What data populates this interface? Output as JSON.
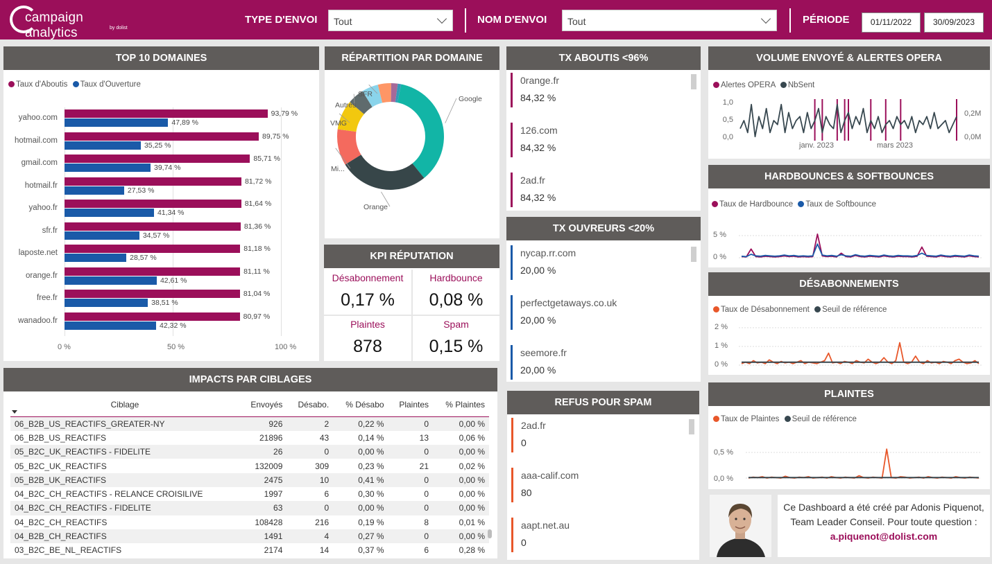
{
  "header": {
    "logo_text": "campaign analytics",
    "logo_by": "by dolist",
    "type_label": "TYPE D'ENVOI",
    "type_value": "Tout",
    "name_label": "NOM D'ENVOI",
    "name_value": "Tout",
    "period_label": "PÉRIODE",
    "date_start": "01/11/2022",
    "date_end": "30/09/2023"
  },
  "top10": {
    "title": "TOP 10 DOMAINES",
    "legend": [
      "Taux d'Aboutis",
      "Taux d'Ouverture"
    ],
    "x_ticks": [
      "0 %",
      "50 %",
      "100 %"
    ]
  },
  "repartition": {
    "title": "RÉPARTITION PAR DOMAINE"
  },
  "kpi": {
    "title": "KPI RÉPUTATION",
    "items": [
      {
        "label": "Désabonnement",
        "value": "0,17 %"
      },
      {
        "label": "Hardbounce",
        "value": "0,08 %"
      },
      {
        "label": "Plaintes",
        "value": "878"
      },
      {
        "label": "Spam",
        "value": "0,15 %"
      }
    ]
  },
  "tx_aboutis": {
    "title": "TX ABOUTIS <96%",
    "items": [
      {
        "name": "0range.fr",
        "value": "84,32 %"
      },
      {
        "name": "126.com",
        "value": "84,32 %"
      },
      {
        "name": "2ad.fr",
        "value": "84,32 %"
      }
    ]
  },
  "tx_ouvreurs": {
    "title": "TX OUVREURS <20%",
    "items": [
      {
        "name": "nycap.rr.com",
        "value": "20,00 %"
      },
      {
        "name": "perfectgetaways.co.uk",
        "value": "20,00 %"
      },
      {
        "name": "seemore.fr",
        "value": "20,00 %"
      }
    ]
  },
  "refus_spam": {
    "title": "REFUS POUR SPAM",
    "items": [
      {
        "name": "2ad.fr",
        "value": "0"
      },
      {
        "name": "aaa-calif.com",
        "value": "80"
      },
      {
        "name": "aapt.net.au",
        "value": "0"
      }
    ]
  },
  "volume": {
    "title": "VOLUME ENVOYÉ & ALERTES OPERA",
    "legend": [
      "Alertes OPERA",
      "NbSent"
    ],
    "y_left": [
      "1,0",
      "0,5",
      "0,0"
    ],
    "y_right": [
      "0,2M",
      "0,0M"
    ],
    "x_ticks": [
      "janv. 2023",
      "mars 2023"
    ]
  },
  "bounces": {
    "title": "HARDBOUNCES & SOFTBOUNCES",
    "legend": [
      "Taux de Hardbounce",
      "Taux de Softbounce"
    ],
    "y_ticks": [
      "5 %",
      "0 %"
    ]
  },
  "desabo": {
    "title": "DÉSABONNEMENTS",
    "legend": [
      "Taux de Désabonnement",
      "Seuil de référence"
    ],
    "y_ticks": [
      "2 %",
      "1 %",
      "0 %"
    ]
  },
  "plaintes": {
    "title": "PLAINTES",
    "legend": [
      "Taux de Plaintes",
      "Seuil de référence"
    ],
    "y_ticks": [
      "0,5 %",
      "0,0 %"
    ]
  },
  "impacts": {
    "title": "IMPACTS PAR CIBLAGES",
    "columns": [
      "Ciblage",
      "Envoyés",
      "Désabo.",
      "% Désabo",
      "Plaintes",
      "% Plaintes"
    ],
    "rows": [
      [
        "06_B2B_US_REACTIFS_GREATER-NY",
        "926",
        "2",
        "0,22 %",
        "0",
        "0,00 %"
      ],
      [
        "06_B2B_US_REACTIFS",
        "21896",
        "43",
        "0,14 %",
        "13",
        "0,06 %"
      ],
      [
        "05_B2C_UK_REACTIFS - FIDELITE",
        "26",
        "0",
        "0,00 %",
        "0",
        "0,00 %"
      ],
      [
        "05_B2C_UK_REACTIFS",
        "132009",
        "309",
        "0,23 %",
        "21",
        "0,02 %"
      ],
      [
        "05_B2B_UK_REACTIFS",
        "2475",
        "10",
        "0,41 %",
        "0",
        "0,00 %"
      ],
      [
        "04_B2C_CH_REACTIFS - RELANCE CROISILIVE",
        "1997",
        "6",
        "0,30 %",
        "0",
        "0,00 %"
      ],
      [
        "04_B2C_CH_REACTIFS - FIDELITE",
        "63",
        "0",
        "0,00 %",
        "0",
        "0,00 %"
      ],
      [
        "04_B2C_CH_REACTIFS",
        "108428",
        "216",
        "0,19 %",
        "8",
        "0,01 %"
      ],
      [
        "04_B2B_CH_REACTIFS",
        "1491",
        "4",
        "0,27 %",
        "0",
        "0,00 %"
      ],
      [
        "03_B2C_BE_NL_REACTIFS",
        "2174",
        "14",
        "0,37 %",
        "6",
        "0,28 %"
      ]
    ]
  },
  "footer": {
    "text": "Ce Dashboard a été créé par Adonis Piquenot, Team Leader Conseil. Pour toute question :",
    "email": "a.piquenot@dolist.com"
  },
  "colors": {
    "brand": "#9b0f5a",
    "blue": "#1a5aa8",
    "orange": "#e8572a",
    "dark": "#37474f",
    "header_gray": "#5f5c5a"
  },
  "chart_data": [
    {
      "type": "bar",
      "title": "TOP 10 DOMAINES",
      "categories": [
        "yahoo.com",
        "hotmail.com",
        "gmail.com",
        "hotmail.fr",
        "yahoo.fr",
        "sfr.fr",
        "laposte.net",
        "orange.fr",
        "free.fr",
        "wanadoo.fr"
      ],
      "series": [
        {
          "name": "Taux d'Aboutis",
          "values": [
            93.79,
            89.75,
            85.71,
            81.72,
            81.64,
            81.36,
            81.18,
            81.11,
            81.04,
            80.97
          ],
          "labels": [
            "93,79 %",
            "89,75 %",
            "85,71 %",
            "81,72 %",
            "81,64 %",
            "81,36 %",
            "81,18 %",
            "81,11 %",
            "81,04 %",
            "80,97 %"
          ]
        },
        {
          "name": "Taux d'Ouverture",
          "values": [
            47.89,
            35.25,
            39.74,
            27.53,
            41.34,
            34.57,
            28.57,
            42.61,
            38.51,
            42.32
          ],
          "labels": [
            "47,89 %",
            "35,25 %",
            "39,74 %",
            "27,53 %",
            "41,34 %",
            "34,57 %",
            "28,57 %",
            "42,61 %",
            "38,51 %",
            "42,32 %"
          ]
        }
      ],
      "xlim": [
        0,
        100
      ]
    },
    {
      "type": "pie",
      "title": "RÉPARTITION PAR DOMAINE",
      "slices": [
        {
          "label": "Google",
          "value": 36,
          "color": "#12b5a6"
        },
        {
          "label": "Orange",
          "value": 27,
          "color": "#374649"
        },
        {
          "label": "Mi...",
          "value": 11,
          "color": "#f46a5e"
        },
        {
          "label": "VMG",
          "value": 9,
          "color": "#f2c80f"
        },
        {
          "label": "Autres",
          "value": 5,
          "color": "#5f6b6d"
        },
        {
          "label": "SFR",
          "value": 5,
          "color": "#8ad4eb"
        },
        {
          "label": "",
          "value": 4,
          "color": "#fe9666"
        },
        {
          "label": "",
          "value": 2,
          "color": "#a66999"
        },
        {
          "label": "",
          "value": 1,
          "color": "#3599b8"
        }
      ]
    },
    {
      "type": "line",
      "title": "HARDBOUNCES & SOFTBOUNCES",
      "series": [
        {
          "name": "Taux de Hardbounce",
          "values": [
            0.3,
            0.2,
            2.3,
            0.3,
            0.2,
            0.4,
            0.3,
            0.2,
            0.3,
            0.5,
            0.3,
            0.4,
            0.2,
            0.3,
            0.2,
            0.3,
            6.2,
            0.5,
            0.3,
            0.4,
            0.2,
            1.2,
            0.3,
            0.2,
            0.6,
            0.3,
            0.2,
            0.4,
            0.3,
            0.2,
            0.5,
            0.3,
            0.2,
            0.4,
            0.3,
            0.3,
            0.2,
            0.4,
            2.8,
            0.4,
            0.3,
            0.2,
            0.5,
            0.3,
            0.2,
            0.4,
            0.3,
            0.2,
            0.5,
            0.3,
            0.2
          ]
        },
        {
          "name": "Taux de Softbounce",
          "values": [
            0.4,
            0.3,
            0.9,
            0.5,
            0.4,
            0.6,
            0.5,
            0.4,
            0.5,
            0.7,
            0.5,
            0.6,
            0.4,
            0.5,
            0.4,
            0.5,
            3.6,
            0.7,
            0.5,
            0.6,
            0.4,
            0.8,
            0.5,
            0.4,
            0.8,
            0.5,
            0.4,
            0.6,
            0.5,
            0.4,
            0.7,
            0.5,
            0.4,
            0.6,
            0.5,
            0.5,
            0.4,
            0.6,
            1.2,
            0.6,
            0.5,
            0.4,
            0.7,
            0.5,
            0.4,
            0.6,
            0.5,
            0.4,
            0.7,
            0.5,
            0.4
          ]
        }
      ],
      "ylim": [
        0,
        8
      ]
    },
    {
      "type": "line",
      "title": "DÉSABONNEMENTS",
      "series": [
        {
          "name": "Taux de Désabonnement",
          "values": [
            0.1,
            0.2,
            0.1,
            0.3,
            0.15,
            0.2,
            0.1,
            0.35,
            0.2,
            0.1,
            0.25,
            0.15,
            0.2,
            0.1,
            0.2,
            0.3,
            0.1,
            0.2,
            0.15,
            0.1,
            0.2,
            0.3,
            0.8,
            0.15,
            0.2,
            0.1,
            0.25,
            0.2,
            0.1,
            0.3,
            0.2,
            0.15,
            0.4,
            0.2,
            0.1,
            0.2,
            0.5,
            0.2,
            0.1,
            0.3,
            1.5,
            0.2,
            0.1,
            0.2,
            0.6,
            0.2,
            0.1,
            0.3,
            0.15,
            0.2,
            0.1,
            0.25,
            0.2,
            0.1,
            0.3,
            0.4,
            0.2,
            0.1,
            0.15,
            0.3,
            0.1
          ]
        },
        {
          "name": "Seuil de référence",
          "values": [
            0.2,
            0.2
          ]
        }
      ],
      "ylim": [
        0,
        2.5
      ]
    },
    {
      "type": "line",
      "title": "PLAINTES",
      "series": [
        {
          "name": "Taux de Plaintes",
          "values": [
            0.0,
            0.02,
            0.01,
            0.03,
            0.0,
            0.02,
            0.01,
            0.0,
            0.04,
            0.01,
            0.0,
            0.02,
            0.01,
            0.03,
            0.0,
            0.01,
            0.02,
            0.0,
            0.03,
            0.01,
            0.0,
            0.02,
            0.01,
            0.0,
            0.05,
            0.01,
            0.0,
            0.02,
            0.01,
            0.0,
            0.62,
            0.01,
            0.0,
            0.03,
            0.02,
            0.0,
            0.01,
            0.02,
            0.0,
            0.03,
            0.01,
            0.0,
            0.02,
            0.01,
            0.0,
            0.03,
            0.01,
            0.0,
            0.02,
            0.01,
            0.0
          ]
        },
        {
          "name": "Seuil de référence",
          "values": [
            0.01,
            0.01
          ]
        }
      ],
      "ylim": [
        0,
        0.8
      ]
    },
    {
      "type": "line",
      "title": "VOLUME ENVOYÉ & ALERTES OPERA",
      "x_ticks": [
        "janv. 2023",
        "mars 2023"
      ],
      "series": [
        {
          "name": "NbSent",
          "values": [
            0.3,
            0.5,
            0.2,
            0.9,
            0.1,
            0.6,
            0.3,
            0.8,
            0.2,
            0.5,
            0.4,
            0.9,
            0.2,
            0.7,
            0.3,
            0.5,
            0.6,
            0.2,
            0.7,
            0.3,
            0.5,
            0.8,
            0.2,
            0.6,
            0.4,
            0.3,
            0.9,
            0.2,
            0.5,
            0.7,
            0.3,
            0.6,
            0.4,
            0.8,
            0.2,
            0.5,
            0.3,
            0.6,
            0.2,
            0.4,
            0.5,
            0.3,
            0.6,
            0.4,
            0.5,
            0.3,
            0.6,
            0.2,
            0.5,
            0.4,
            0.6,
            0.3,
            0.7,
            0.3,
            0.4,
            0.5,
            0.2,
            0.4,
            0.6
          ]
        },
        {
          "name": "Alertes OPERA",
          "values": [
            0,
            0,
            0,
            0,
            0,
            0,
            0,
            0,
            0,
            0,
            0,
            0,
            0,
            0,
            0,
            0,
            0,
            0,
            0,
            0,
            1,
            0,
            1,
            0,
            0,
            0,
            1,
            0,
            1,
            1,
            0,
            0,
            0,
            0,
            0,
            1,
            0,
            0,
            0,
            1,
            0,
            0,
            0,
            1,
            0,
            0,
            0,
            0,
            0,
            0,
            0,
            0,
            0,
            0,
            0,
            0,
            0,
            0,
            1
          ]
        }
      ],
      "ylim": [
        0,
        1
      ]
    }
  ]
}
